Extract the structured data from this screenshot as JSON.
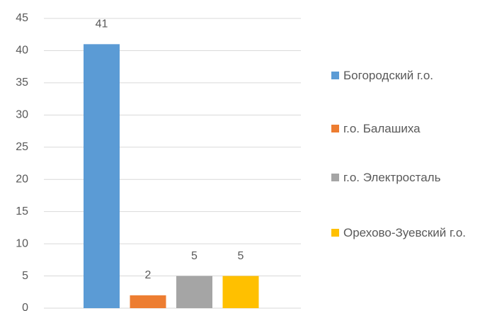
{
  "chart_data": {
    "type": "bar",
    "series": [
      {
        "name": "Богородский г.о.",
        "color": "#5b9bd5",
        "values": [
          41
        ]
      },
      {
        "name": "г.о. Балашиха",
        "color": "#ed7d31",
        "values": [
          2
        ]
      },
      {
        "name": "г.о. Электросталь",
        "color": "#a5a5a5",
        "values": [
          5
        ]
      },
      {
        "name": "Орехово-Зуевский г.о.",
        "color": "#ffc000",
        "values": [
          5
        ]
      }
    ],
    "ylim": [
      0,
      45
    ],
    "yticks": [
      0,
      5,
      10,
      15,
      20,
      25,
      30,
      35,
      40,
      45
    ],
    "grid": true,
    "legend": "right"
  }
}
